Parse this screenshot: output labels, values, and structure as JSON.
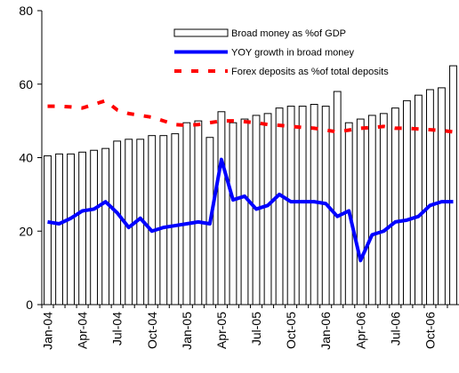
{
  "chart_data": {
    "type": "bar",
    "categories": [
      "Jan-04",
      null,
      null,
      "Apr-04",
      null,
      null,
      "Jul-04",
      null,
      null,
      "Oct-04",
      null,
      null,
      "Jan-05",
      null,
      null,
      "Apr-05",
      null,
      null,
      "Jul-05",
      null,
      null,
      "Oct-05",
      null,
      null,
      "Jan-06",
      null,
      null,
      "Apr-06",
      null,
      null,
      "Jul-06",
      null,
      null,
      "Oct-06",
      null,
      null
    ],
    "series": [
      {
        "name": "Broad money as %of GDP",
        "type": "bar",
        "color": "#ffffff",
        "values": [
          40.5,
          41,
          41,
          41.5,
          42,
          42.5,
          44.5,
          45,
          45,
          46,
          46,
          46.5,
          49.5,
          50,
          45.5,
          52.5,
          49.5,
          50.5,
          51.5,
          52,
          53.5,
          54,
          54,
          54.5,
          54,
          58,
          49.5,
          50.5,
          51.5,
          52,
          53.5,
          55.5,
          57,
          58.5,
          59,
          65
        ]
      },
      {
        "name": "YOY growth in broad money",
        "type": "line",
        "color": "#0000ff",
        "style": "solid",
        "values": [
          22.5,
          22,
          23.5,
          25.5,
          26,
          28,
          25,
          21,
          23.5,
          20,
          21,
          21.5,
          22,
          22.5,
          22,
          39.5,
          28.5,
          29.5,
          26,
          27,
          30,
          28,
          28,
          28,
          27.5,
          24,
          25.5,
          12,
          19,
          20,
          22.5,
          23,
          24,
          27,
          28,
          28
        ]
      },
      {
        "name": "Forex deposits as %of total deposits",
        "type": "line",
        "color": "#ff0000",
        "style": "dashed",
        "values": [
          54,
          54,
          53.8,
          53.5,
          54.5,
          55.5,
          53,
          52,
          51.5,
          51,
          50,
          49,
          48.8,
          49,
          49.5,
          50,
          50,
          49.8,
          49.5,
          49,
          48.8,
          48.5,
          48.2,
          48,
          47.5,
          47,
          47.5,
          48,
          48.2,
          48.5,
          48,
          48,
          47.8,
          47.6,
          47.4,
          47
        ]
      }
    ],
    "ylim": [
      0,
      80
    ],
    "yticks": [
      0,
      20,
      40,
      60,
      80
    ],
    "grid": false
  }
}
